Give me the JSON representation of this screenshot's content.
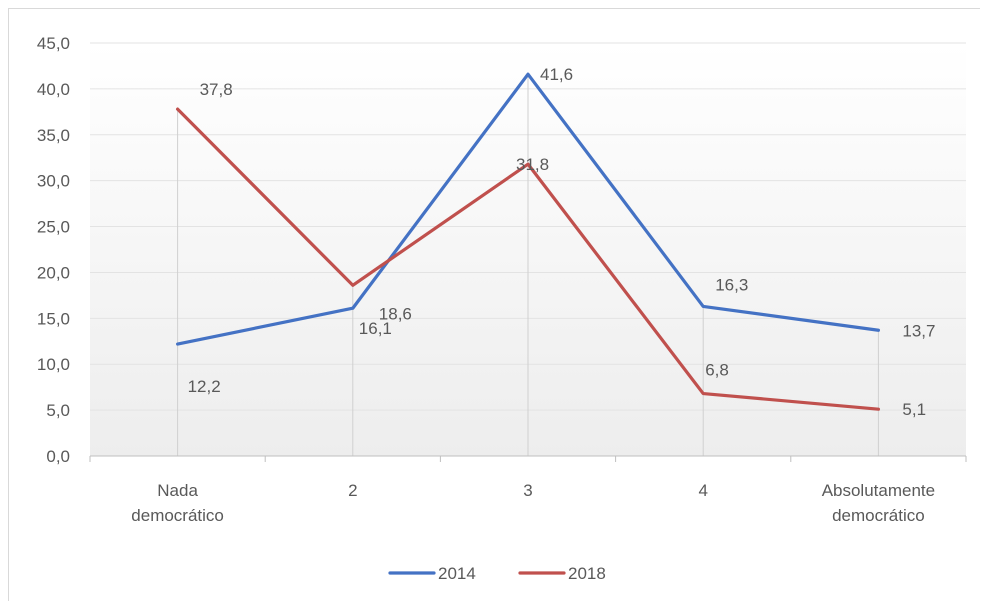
{
  "chart_data": {
    "type": "line",
    "title": "",
    "categories": [
      [
        "Nada",
        "democrático"
      ],
      [
        "2"
      ],
      [
        "3"
      ],
      [
        "4"
      ],
      [
        "Absolutamente",
        "democrático"
      ]
    ],
    "ylim": [
      0,
      45
    ],
    "yticks": [
      "0,0",
      "5,0",
      "10,0",
      "15,0",
      "20,0",
      "25,0",
      "30,0",
      "35,0",
      "40,0",
      "45,0"
    ],
    "series": [
      {
        "name": "2014",
        "color": "#4472c4",
        "values": [
          12.2,
          16.1,
          41.6,
          16.3,
          13.7
        ],
        "labels": [
          "12,2",
          "16,1",
          "41,6",
          "16,3",
          "13,7"
        ]
      },
      {
        "name": "2018",
        "color": "#c0504d",
        "values": [
          37.8,
          18.6,
          31.8,
          6.8,
          5.1
        ],
        "labels": [
          "37,8",
          "18,6",
          "31,8",
          "6,8",
          "5,1"
        ]
      }
    ],
    "grid": "horizontal",
    "drop_lines": true,
    "legend": "bottom"
  }
}
